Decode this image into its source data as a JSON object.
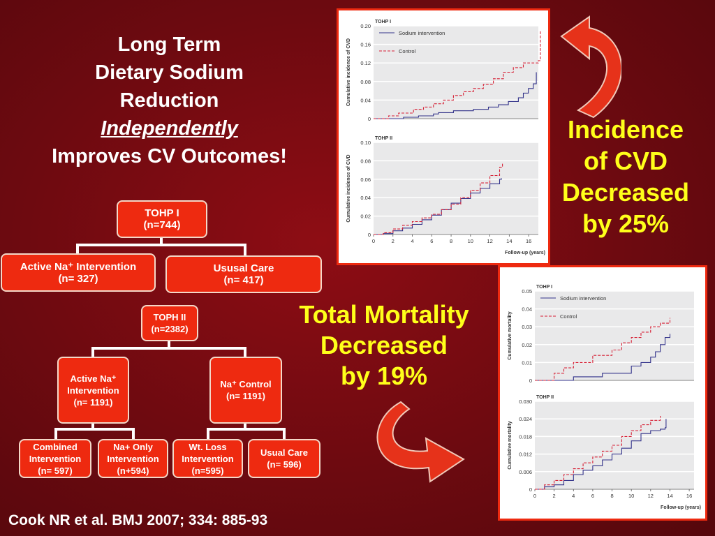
{
  "title": {
    "line1": "Long Term",
    "line2": "Dietary Sodium",
    "line3": "Reduction",
    "line4": "Independently",
    "line5": "Improves CV Outcomes!"
  },
  "tohp1_tree": {
    "root": {
      "line1": "TOHP I",
      "line2": "(n=744)"
    },
    "left": {
      "line1": "Active Na⁺ Intervention",
      "line2": "(n= 327)"
    },
    "right": {
      "line1": "Ususal Care",
      "line2": "(n= 417)"
    }
  },
  "tohp2_tree": {
    "root": {
      "line1": "TOPH II",
      "line2": "(n=2382)"
    },
    "left": {
      "line1": "Active Na⁺",
      "line2": "Intervention",
      "line3": "(n= 1191)"
    },
    "right": {
      "line1": "Na⁺ Control",
      "line2": "(n= 1191)"
    },
    "leaf1": {
      "line1": "Combined",
      "line2": "Intervention",
      "line3": "(n= 597)"
    },
    "leaf2": {
      "line1": "Na+ Only",
      "line2": "Intervention",
      "line3": "(n+594)"
    },
    "leaf3": {
      "line1": "Wt. Loss",
      "line2": "Intervention",
      "line3": "(n=595)"
    },
    "leaf4": {
      "line1": "Usual Care",
      "line2": "(n= 596)"
    }
  },
  "cvd_callout": {
    "line1": "Incidence",
    "line2": "of CVD",
    "line3": "Decreased",
    "line4": "by 25%"
  },
  "mortality_callout": {
    "line1": "Total Mortality",
    "line2": "Decreased",
    "line3": "by 19%"
  },
  "citation": "Cook NR et al. BMJ 2007; 334: 885-93",
  "colors": {
    "intervention": "#33338a",
    "control": "#d62035",
    "accent": "#ee2a10",
    "callout": "#ffff1a"
  },
  "chart_data": [
    {
      "type": "line",
      "panel": "TOHP I",
      "title": "TOHP I",
      "ylabel": "Cumulative incidence of CVD",
      "xlabel": "",
      "xlim": [
        0,
        16.5
      ],
      "ylim": [
        0,
        0.2
      ],
      "yticks": [
        0,
        0.04,
        0.08,
        0.12,
        0.16,
        0.2
      ],
      "ytick_labels": [
        "0",
        "0.04",
        "0.08",
        "0.12",
        "0.16",
        "0.20"
      ],
      "xticks": [],
      "xtick_labels": [],
      "legend": "top-left",
      "series": [
        {
          "name": "Sodium intervention",
          "style": "solid",
          "color": "#33338a",
          "x": [
            0,
            3,
            4.5,
            6,
            6.5,
            8,
            10,
            11.5,
            12.5,
            13.5,
            14.5,
            15,
            15.5,
            16,
            16.3
          ],
          "y": [
            0,
            0.003,
            0.006,
            0.01,
            0.013,
            0.017,
            0.02,
            0.025,
            0.03,
            0.037,
            0.045,
            0.055,
            0.065,
            0.075,
            0.1
          ]
        },
        {
          "name": "Control",
          "style": "dashed",
          "color": "#d62035",
          "x": [
            0,
            1.5,
            2.5,
            4,
            5,
            6,
            7,
            8,
            9,
            10,
            11,
            12,
            13,
            14,
            15,
            16.5,
            16.7
          ],
          "y": [
            0,
            0.006,
            0.012,
            0.02,
            0.025,
            0.032,
            0.04,
            0.05,
            0.058,
            0.065,
            0.074,
            0.086,
            0.1,
            0.11,
            0.12,
            0.125,
            0.19
          ]
        }
      ]
    },
    {
      "type": "line",
      "panel": "TOHP II",
      "title": "TOHP II",
      "ylabel": "Cumulative incidence of CVD",
      "xlabel": "Follow-up (years)",
      "xlim": [
        0,
        17
      ],
      "ylim": [
        0,
        0.1
      ],
      "yticks": [
        0,
        0.02,
        0.04,
        0.06,
        0.08,
        0.1
      ],
      "ytick_labels": [
        "0",
        "0.02",
        "0.04",
        "0.06",
        "0.08",
        "0.10"
      ],
      "xticks": [
        0,
        2,
        4,
        6,
        8,
        10,
        12,
        14,
        16
      ],
      "xtick_labels": [
        "0",
        "2",
        "4",
        "6",
        "8",
        "10",
        "12",
        "14",
        "16"
      ],
      "series": [
        {
          "name": "Sodium intervention",
          "style": "solid",
          "color": "#33338a",
          "x": [
            0,
            1,
            2,
            3,
            4,
            5,
            6,
            7,
            8,
            9,
            10,
            11,
            12,
            13,
            13.2
          ],
          "y": [
            0,
            0.001,
            0.004,
            0.007,
            0.011,
            0.016,
            0.021,
            0.027,
            0.034,
            0.039,
            0.045,
            0.05,
            0.055,
            0.06,
            0.061
          ]
        },
        {
          "name": "Control",
          "style": "dashed",
          "color": "#d62035",
          "x": [
            0,
            1,
            2,
            3,
            4,
            5,
            6,
            7,
            8,
            9,
            10,
            11,
            12,
            13,
            13.3
          ],
          "y": [
            0,
            0.002,
            0.006,
            0.01,
            0.014,
            0.018,
            0.022,
            0.027,
            0.033,
            0.04,
            0.048,
            0.056,
            0.064,
            0.073,
            0.078
          ]
        }
      ]
    },
    {
      "type": "line",
      "panel": "TOHP I",
      "title": "TOHP I",
      "ylabel": "Cumulative mortality",
      "xlabel": "",
      "xlim": [
        0,
        16.5
      ],
      "ylim": [
        0,
        0.05
      ],
      "yticks": [
        0,
        0.01,
        0.02,
        0.03,
        0.04,
        0.05
      ],
      "ytick_labels": [
        "0",
        "0.01",
        "0.02",
        "0.03",
        "0.04",
        "0.05"
      ],
      "xticks": [],
      "xtick_labels": [],
      "legend": "top-left",
      "series": [
        {
          "name": "Sodium intervention",
          "style": "solid",
          "color": "#33338a",
          "x": [
            0,
            4,
            7,
            10,
            11,
            12,
            12.5,
            13,
            13.5,
            14
          ],
          "y": [
            0,
            0.002,
            0.004,
            0.008,
            0.01,
            0.013,
            0.016,
            0.02,
            0.024,
            0.026
          ]
        },
        {
          "name": "Control",
          "style": "dashed",
          "color": "#d62035",
          "x": [
            0,
            2,
            3,
            4,
            6,
            8,
            9,
            10,
            11,
            12,
            13,
            14
          ],
          "y": [
            0,
            0.004,
            0.007,
            0.01,
            0.014,
            0.017,
            0.021,
            0.024,
            0.027,
            0.03,
            0.032,
            0.035
          ]
        }
      ]
    },
    {
      "type": "line",
      "panel": "TOHP II",
      "title": "TOHP II",
      "ylabel": "Cumulative mortality",
      "xlabel": "Follow-up (years)",
      "xlim": [
        0,
        16.5
      ],
      "ylim": [
        0,
        0.03
      ],
      "yticks": [
        0,
        0.006,
        0.012,
        0.018,
        0.024,
        0.03
      ],
      "ytick_labels": [
        "0",
        "0.006",
        "0.012",
        "0.018",
        "0.024",
        "0.030"
      ],
      "xticks": [
        0,
        2,
        4,
        6,
        8,
        10,
        12,
        14,
        16
      ],
      "xtick_labels": [
        "0",
        "2",
        "4",
        "6",
        "8",
        "10",
        "12",
        "14",
        "16"
      ],
      "series": [
        {
          "name": "Sodium intervention",
          "style": "solid",
          "color": "#33338a",
          "x": [
            0,
            1,
            2,
            3,
            4,
            5,
            6,
            7,
            8,
            9,
            10,
            11,
            12,
            13,
            13.5,
            13.6
          ],
          "y": [
            0,
            0.0008,
            0.0015,
            0.003,
            0.005,
            0.0065,
            0.008,
            0.01,
            0.012,
            0.014,
            0.0165,
            0.019,
            0.02,
            0.0205,
            0.021,
            0.024
          ]
        },
        {
          "name": "Control",
          "style": "dashed",
          "color": "#d62035",
          "x": [
            0,
            1,
            2,
            3,
            4,
            5,
            6,
            7,
            8,
            9,
            10,
            11,
            12,
            13
          ],
          "y": [
            0,
            0.0015,
            0.003,
            0.005,
            0.007,
            0.009,
            0.011,
            0.013,
            0.015,
            0.018,
            0.02,
            0.022,
            0.0235,
            0.025
          ]
        }
      ]
    }
  ]
}
